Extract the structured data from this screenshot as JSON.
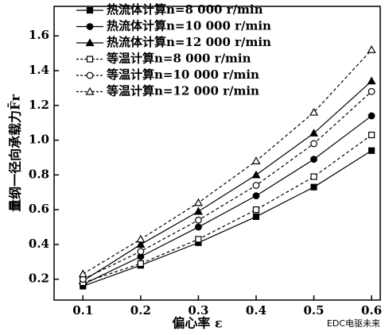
{
  "chart_data": {
    "type": "line",
    "x_label": "偏心率 ε",
    "y_label": "量纲一径向承载力F̄r",
    "watermark": "EDC电驱未来",
    "x": [
      0.1,
      0.2,
      0.3,
      0.4,
      0.5,
      0.6
    ],
    "xlim": [
      0.05,
      0.615
    ],
    "xticks": [
      0.1,
      0.2,
      0.3,
      0.4,
      0.5,
      0.6
    ],
    "ylim": [
      0.08,
      1.77
    ],
    "yticks": [
      0.2,
      0.4,
      0.6,
      0.8,
      {
        "value": 1.0,
        "label": "1.0"
      },
      1.2,
      1.4,
      1.6
    ],
    "legend": "upper left",
    "series": [
      {
        "name": "热流体计算n=8 000 r/min",
        "color": "#000000",
        "marker": "square",
        "filled": true,
        "line_style": "solid",
        "values": [
          0.16,
          0.28,
          0.41,
          0.56,
          0.73,
          0.94
        ]
      },
      {
        "name": "热流体计算n=10 000 r/min",
        "color": "#000000",
        "marker": "circle",
        "filled": true,
        "line_style": "solid",
        "values": [
          0.17,
          0.33,
          0.5,
          0.68,
          0.89,
          1.14
        ]
      },
      {
        "name": "热流体计算n=12 000 r/min",
        "color": "#000000",
        "marker": "triangle",
        "filled": true,
        "line_style": "solid",
        "values": [
          0.19,
          0.4,
          0.59,
          0.8,
          1.04,
          1.34
        ]
      },
      {
        "name": "等温计算n=8 000 r/min",
        "color": "#000000",
        "marker": "square",
        "filled": false,
        "line_style": "dashed",
        "values": [
          0.18,
          0.29,
          0.43,
          0.6,
          0.79,
          1.03
        ]
      },
      {
        "name": "等温计算n=10 000 r/min",
        "color": "#000000",
        "marker": "circle",
        "filled": false,
        "line_style": "dashed",
        "values": [
          0.2,
          0.36,
          0.54,
          0.74,
          0.98,
          1.28
        ]
      },
      {
        "name": "等温计算n=12 000 r/min",
        "color": "#000000",
        "marker": "triangle",
        "filled": false,
        "line_style": "dashed",
        "values": [
          0.23,
          0.43,
          0.64,
          0.88,
          1.16,
          1.52
        ]
      }
    ]
  }
}
